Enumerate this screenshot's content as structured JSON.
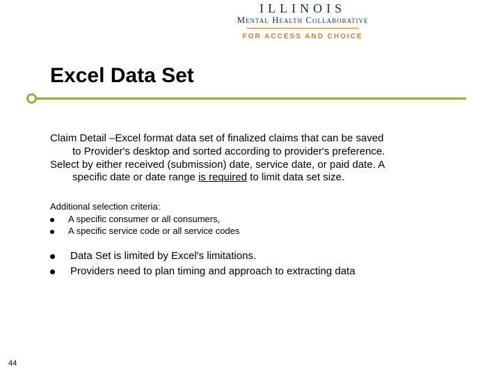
{
  "logo": {
    "line1": "ILLINOIS",
    "line2": "Mental Health Collaborative",
    "line3": "FOR ACCESS AND CHOICE"
  },
  "title": "Excel Data Set",
  "para1": {
    "line1": "Claim Detail –Excel format data set of finalized claims that can be saved",
    "line2": "to Provider's desktop and sorted according to provider's preference.",
    "line3a": "Select by either received (submission) date, service date, or paid date.  A",
    "line4a": "specific date or date range ",
    "line4u": "is required",
    "line4b": " to limit data set size."
  },
  "para2": {
    "heading": "Additional selection criteria:",
    "b1": "A specific consumer or all consumers,",
    "b2": "A specific service code or all service codes"
  },
  "para3": {
    "b1": "Data Set is limited by Excel's limitations.",
    "b2": "Providers need to plan timing and approach to extracting data"
  },
  "pageNumber": "44",
  "colors": {
    "accent_green": "#98b03a",
    "accent_orange": "#d97b2e",
    "logo_navy": "#1a2a50"
  }
}
